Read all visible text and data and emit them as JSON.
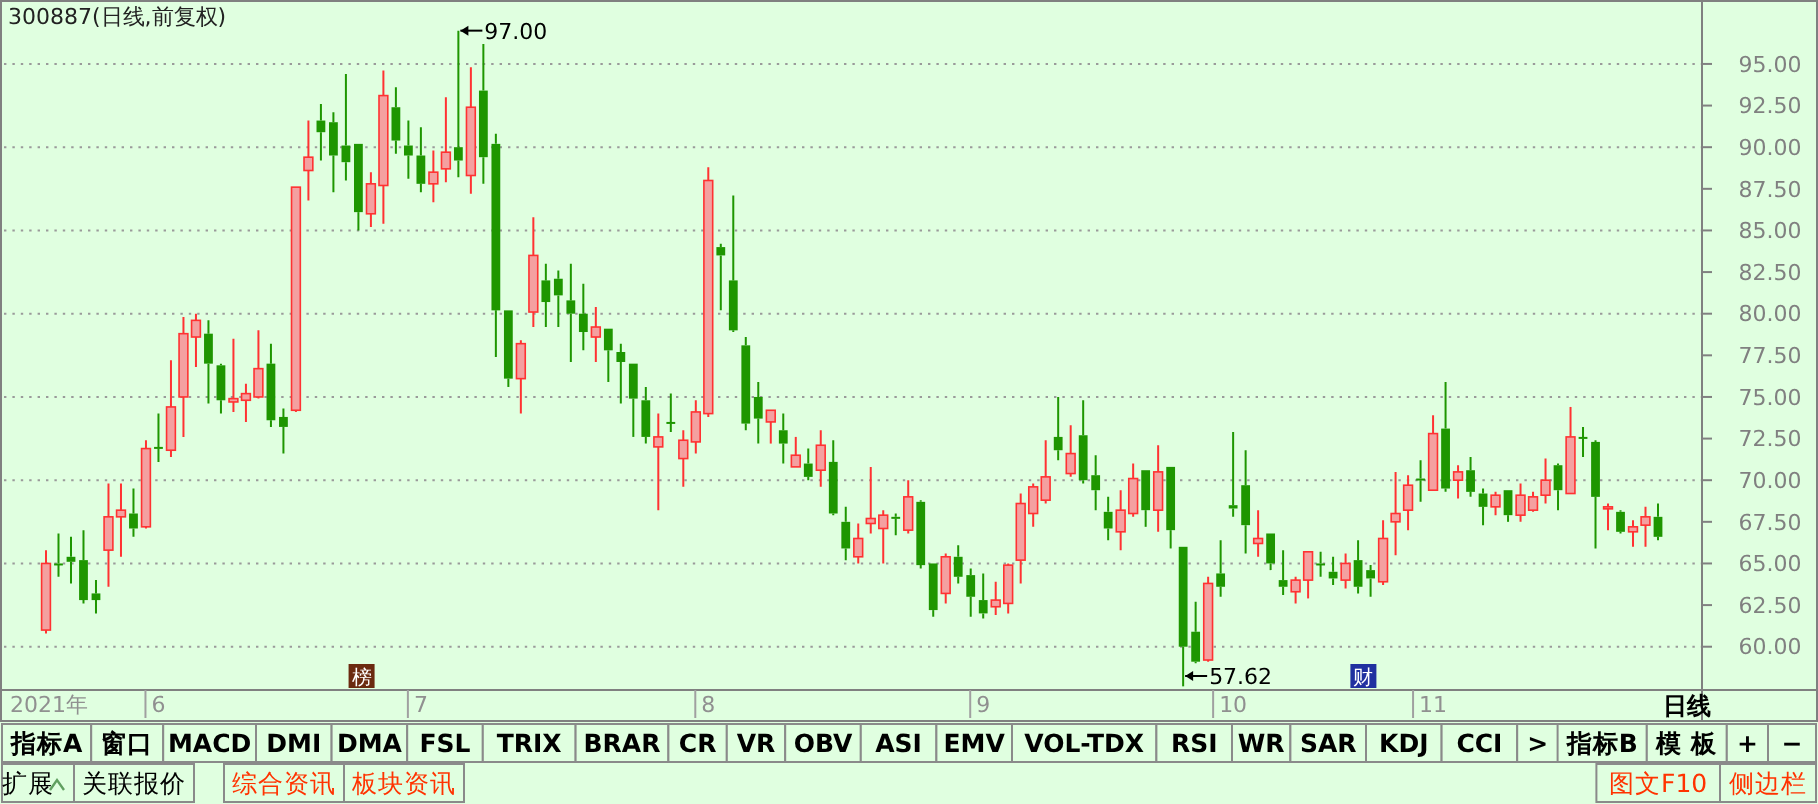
{
  "chart_data": [
    {
      "type": "candlestick",
      "title": "300887(日线,前复权)",
      "categories": [
        "2021年",
        null,
        null,
        null,
        null,
        null,
        null,
        null,
        null,
        "6",
        null,
        null,
        null,
        null,
        null,
        null,
        null,
        null,
        null,
        null,
        null,
        null,
        null,
        null,
        null,
        null,
        null,
        null,
        null,
        null,
        "7",
        null,
        null,
        null,
        null,
        null,
        null,
        null,
        null,
        null,
        null,
        null,
        null,
        null,
        null,
        null,
        null,
        null,
        null,
        null,
        null,
        null,
        null,
        "8",
        null,
        null,
        null,
        null,
        null,
        null,
        null,
        null,
        null,
        null,
        null,
        null,
        null,
        null,
        null,
        null,
        null,
        null,
        null,
        null,
        null,
        "9",
        null,
        null,
        null,
        null,
        null,
        null,
        null,
        null,
        null,
        null,
        null,
        null,
        null,
        null,
        null,
        null,
        null,
        null,
        null,
        "10",
        null,
        null,
        null,
        null,
        null,
        null,
        null,
        null,
        null,
        null,
        null,
        null,
        null,
        null,
        null,
        "11",
        null,
        null,
        null,
        null,
        null,
        null,
        null,
        null,
        null,
        null,
        null,
        null,
        null,
        null,
        null,
        null,
        null,
        null
      ],
      "ohlc": [
        [
          61.0,
          65.8,
          60.8,
          65.0
        ],
        [
          65.0,
          66.8,
          64.2,
          64.9
        ],
        [
          65.4,
          66.6,
          63.8,
          65.1
        ],
        [
          65.2,
          67.0,
          62.6,
          62.8
        ],
        [
          63.2,
          64.0,
          62.0,
          62.8
        ],
        [
          65.8,
          69.8,
          63.6,
          67.8
        ],
        [
          67.8,
          69.8,
          65.4,
          68.2
        ],
        [
          68.0,
          69.5,
          66.6,
          67.1
        ],
        [
          67.2,
          72.4,
          67.1,
          71.9
        ],
        [
          72.0,
          74.0,
          71.1,
          71.9
        ],
        [
          71.8,
          77.2,
          71.4,
          74.4
        ],
        [
          75.0,
          79.8,
          72.6,
          78.8
        ],
        [
          78.6,
          80.0,
          76.8,
          79.6
        ],
        [
          78.8,
          79.6,
          74.6,
          77.0
        ],
        [
          76.9,
          77.0,
          74.0,
          74.8
        ],
        [
          74.7,
          78.5,
          74.1,
          74.9
        ],
        [
          74.8,
          75.8,
          73.5,
          75.2
        ],
        [
          75.0,
          79.0,
          74.9,
          76.7
        ],
        [
          77.0,
          78.2,
          73.2,
          73.6
        ],
        [
          73.8,
          74.3,
          71.6,
          73.2
        ],
        [
          74.2,
          87.6,
          74.1,
          87.6
        ],
        [
          88.6,
          91.6,
          86.8,
          89.4
        ],
        [
          91.6,
          92.6,
          89.2,
          90.9
        ],
        [
          91.5,
          92.1,
          87.3,
          89.5
        ],
        [
          90.1,
          94.4,
          88.0,
          89.1
        ],
        [
          90.2,
          90.2,
          85.0,
          86.1
        ],
        [
          86.0,
          88.5,
          85.2,
          87.8
        ],
        [
          87.7,
          94.6,
          85.4,
          93.1
        ],
        [
          92.4,
          93.6,
          89.6,
          90.4
        ],
        [
          90.1,
          91.6,
          88.1,
          89.5
        ],
        [
          89.5,
          91.2,
          87.3,
          87.8
        ],
        [
          87.8,
          89.8,
          86.7,
          88.5
        ],
        [
          88.7,
          93.0,
          87.9,
          89.7
        ],
        [
          90.0,
          97.0,
          88.2,
          89.2
        ],
        [
          88.3,
          94.8,
          87.2,
          92.4
        ],
        [
          93.4,
          96.2,
          87.8,
          89.4
        ],
        [
          90.2,
          90.8,
          77.4,
          80.2
        ],
        [
          80.2,
          80.2,
          75.6,
          76.1
        ],
        [
          76.1,
          78.4,
          74.0,
          78.2
        ],
        [
          80.1,
          85.8,
          79.2,
          83.5
        ],
        [
          82.0,
          83.0,
          79.2,
          80.7
        ],
        [
          82.1,
          82.6,
          79.2,
          81.1
        ],
        [
          80.8,
          83.0,
          77.1,
          80.0
        ],
        [
          80.0,
          81.8,
          77.8,
          78.9
        ],
        [
          78.6,
          80.4,
          77.1,
          79.2
        ],
        [
          79.1,
          79.1,
          75.9,
          77.8
        ],
        [
          77.7,
          78.2,
          74.6,
          77.1
        ],
        [
          77.0,
          77.0,
          72.6,
          74.9
        ],
        [
          74.8,
          75.6,
          72.2,
          72.6
        ],
        [
          72.0,
          74.0,
          68.2,
          72.6
        ],
        [
          73.5,
          75.2,
          72.9,
          73.4
        ],
        [
          71.3,
          73.0,
          69.6,
          72.4
        ],
        [
          72.3,
          74.8,
          71.6,
          74.1
        ],
        [
          74.0,
          88.8,
          73.8,
          88.0
        ],
        [
          84.0,
          84.2,
          80.2,
          83.5
        ],
        [
          82.0,
          87.1,
          78.9,
          79.0
        ],
        [
          78.1,
          78.6,
          73.0,
          73.4
        ],
        [
          75.0,
          75.9,
          72.2,
          73.7
        ],
        [
          73.5,
          74.2,
          72.2,
          74.2
        ],
        [
          73.0,
          74.0,
          71.0,
          72.2
        ],
        [
          70.8,
          72.6,
          70.8,
          71.5
        ],
        [
          71.0,
          71.9,
          70.0,
          70.2
        ],
        [
          70.6,
          73.0,
          69.6,
          72.1
        ],
        [
          71.1,
          72.4,
          67.9,
          68.0
        ],
        [
          67.5,
          68.4,
          65.2,
          65.9
        ],
        [
          65.4,
          67.4,
          65.0,
          66.5
        ],
        [
          67.4,
          70.8,
          66.8,
          67.7
        ],
        [
          67.1,
          68.2,
          65.0,
          67.9
        ],
        [
          67.8,
          68.0,
          66.7,
          67.7
        ],
        [
          67.0,
          70.0,
          66.8,
          69.0
        ],
        [
          68.7,
          68.8,
          64.7,
          64.9
        ],
        [
          65.0,
          65.0,
          61.8,
          62.2
        ],
        [
          63.2,
          65.6,
          62.6,
          65.4
        ],
        [
          65.4,
          66.1,
          63.8,
          64.2
        ],
        [
          64.3,
          64.7,
          61.8,
          63.0
        ],
        [
          62.8,
          64.4,
          61.7,
          62.0
        ],
        [
          62.4,
          63.9,
          61.9,
          62.8
        ],
        [
          62.6,
          65.0,
          62.0,
          64.9
        ],
        [
          65.2,
          69.2,
          63.8,
          68.6
        ],
        [
          68.0,
          69.8,
          67.2,
          69.6
        ],
        [
          68.8,
          72.4,
          68.6,
          70.2
        ],
        [
          72.6,
          75.0,
          71.2,
          71.8
        ],
        [
          70.4,
          73.3,
          70.2,
          71.6
        ],
        [
          72.7,
          74.8,
          69.8,
          70.0
        ],
        [
          70.3,
          71.5,
          68.2,
          69.4
        ],
        [
          68.1,
          69.0,
          66.4,
          67.1
        ],
        [
          66.9,
          69.4,
          65.8,
          68.2
        ],
        [
          68.0,
          71.0,
          67.8,
          70.1
        ],
        [
          70.6,
          70.6,
          67.2,
          68.2
        ],
        [
          68.2,
          72.1,
          66.9,
          70.5
        ],
        [
          70.8,
          70.8,
          65.9,
          67.0
        ],
        [
          66.0,
          66.0,
          57.62,
          60.0
        ],
        [
          60.9,
          62.7,
          59.0,
          59.1
        ],
        [
          59.2,
          64.2,
          59.1,
          63.8
        ],
        [
          64.4,
          66.4,
          63.0,
          63.6
        ],
        [
          68.5,
          72.9,
          67.8,
          68.3
        ],
        [
          69.7,
          71.8,
          65.6,
          67.3
        ],
        [
          66.2,
          68.2,
          65.4,
          66.5
        ],
        [
          66.8,
          66.8,
          64.6,
          65.0
        ],
        [
          64.0,
          65.8,
          63.1,
          63.6
        ],
        [
          63.3,
          64.2,
          62.6,
          64.0
        ],
        [
          64.0,
          65.7,
          62.9,
          65.7
        ],
        [
          65.0,
          65.7,
          64.2,
          64.9
        ],
        [
          64.5,
          65.4,
          63.7,
          64.1
        ],
        [
          64.0,
          65.6,
          63.5,
          65.0
        ],
        [
          65.2,
          66.4,
          63.2,
          63.6
        ],
        [
          64.6,
          64.9,
          63.0,
          64.1
        ],
        [
          63.9,
          67.6,
          63.7,
          66.5
        ],
        [
          67.5,
          70.5,
          65.5,
          68.0
        ],
        [
          68.2,
          70.3,
          67.0,
          69.7
        ],
        [
          70.1,
          71.2,
          68.7,
          70.0
        ],
        [
          69.4,
          73.9,
          69.4,
          72.8
        ],
        [
          73.1,
          75.9,
          69.3,
          69.5
        ],
        [
          70.0,
          70.9,
          68.9,
          70.5
        ],
        [
          70.6,
          71.4,
          69.0,
          69.3
        ],
        [
          69.2,
          69.5,
          67.3,
          68.4
        ],
        [
          68.4,
          69.3,
          67.9,
          69.1
        ],
        [
          69.4,
          69.4,
          67.5,
          67.9
        ],
        [
          67.9,
          69.8,
          67.5,
          69.1
        ],
        [
          68.2,
          69.3,
          68.1,
          69.0
        ],
        [
          69.1,
          71.3,
          68.6,
          70.0
        ],
        [
          70.9,
          71.0,
          68.2,
          69.4
        ],
        [
          69.2,
          74.4,
          69.2,
          72.6
        ],
        [
          72.6,
          73.2,
          71.4,
          72.5
        ],
        [
          72.3,
          72.4,
          65.9,
          69.0
        ],
        [
          68.3,
          68.6,
          67.0,
          68.4
        ],
        [
          68.1,
          68.2,
          66.8,
          66.9
        ],
        [
          66.9,
          67.6,
          66.0,
          67.2
        ],
        [
          67.3,
          68.4,
          66.0,
          67.8
        ],
        [
          67.8,
          68.6,
          66.4,
          66.6
        ]
      ],
      "ylim": [
        57.4,
        98.6
      ],
      "yticks": [
        {
          "value": 60,
          "label": "60.00"
        },
        {
          "value": 62.5,
          "label": "62.50"
        },
        {
          "value": 65,
          "label": "65.00"
        },
        {
          "value": 67.5,
          "label": "67.50"
        },
        {
          "value": 70,
          "label": "70.00"
        },
        {
          "value": 72.5,
          "label": "72.50"
        },
        {
          "value": 75,
          "label": "75.00"
        },
        {
          "value": 77.5,
          "label": "77.50"
        },
        {
          "value": 80,
          "label": "80.00"
        },
        {
          "value": 82.5,
          "label": "82.50"
        },
        {
          "value": 85,
          "label": "85.00"
        },
        {
          "value": 87.5,
          "label": "87.50"
        },
        {
          "value": 90,
          "label": "90.00"
        },
        {
          "value": 92.5,
          "label": "92.50"
        },
        {
          "value": 95,
          "label": "95.00"
        }
      ],
      "grid": "y",
      "annotations": [
        "97.00",
        "57.62",
        "榜",
        "财"
      ]
    },
    {
      "type": "other",
      "annotations": [
        "指标A",
        "窗口",
        "MACD",
        "DMI",
        "DMA",
        "FSL",
        "TRIX",
        "BRAR",
        "CR",
        "VR",
        "OBV",
        "ASI",
        "EMV",
        "VOL-TDX",
        "RSI",
        "WR",
        "SAR",
        "KDJ",
        "CCI",
        ">"
      ]
    },
    {
      "type": "other",
      "title": "日线",
      "annotations": [
        "指标B",
        "模 板",
        "+",
        "−"
      ]
    },
    {
      "type": "other",
      "annotations": [
        "扩展",
        "关联报价"
      ]
    },
    {
      "type": "other",
      "color": "#ff3300",
      "annotations": [
        "综合资讯",
        "板块资讯"
      ]
    },
    {
      "type": "other",
      "color": "#ff3300",
      "annotations": [
        "图文F10",
        "侧边栏"
      ]
    }
  ]
}
